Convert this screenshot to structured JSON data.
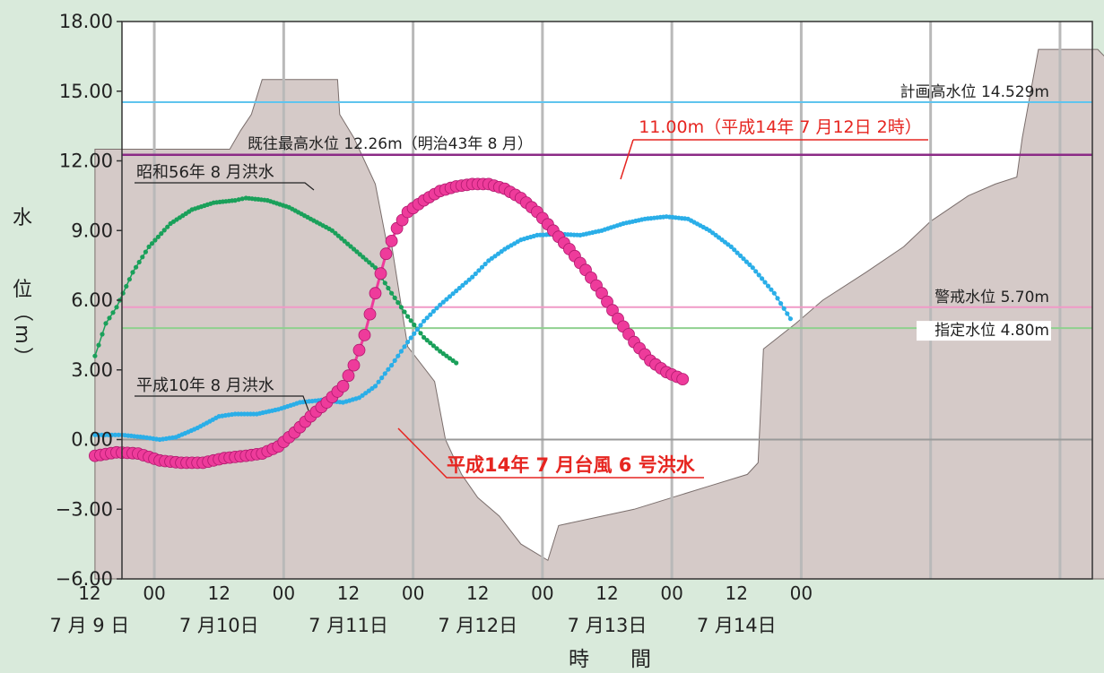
{
  "chart_data": {
    "type": "line",
    "xlabel": "時　　間",
    "ylabel": [
      "水",
      "位",
      "（",
      "m",
      "）"
    ],
    "ylim": [
      -6,
      18
    ],
    "xlim_hours": [
      0,
      144
    ],
    "yticks": [
      "18.00",
      "15.00",
      "12.00",
      "9.00",
      "6.00",
      "3.00",
      "0.00",
      "−3.00",
      "−6.00"
    ],
    "hour_ticks": [
      "12",
      "00",
      "12",
      "00",
      "12",
      "00",
      "12",
      "00",
      "12",
      "00",
      "12",
      "00"
    ],
    "date_ticks": [
      "7 月 9 日",
      "7 月10日",
      "7 月11日",
      "7 月12日",
      "7 月13日",
      "7 月14日"
    ],
    "reference_lines": [
      {
        "name": "計画高水位 14.529m",
        "value": 14.529,
        "color": "#5fc4ee"
      },
      {
        "name": "既往最高水位 12.26m（明治43年 8 月）",
        "value": 12.26,
        "color": "#8b2a86"
      },
      {
        "name": "警戒水位 5.70m",
        "value": 5.7,
        "color": "#f09ac7"
      },
      {
        "name": "指定水位 4.80m",
        "value": 4.8,
        "color": "#8fd08f"
      },
      {
        "name": "",
        "value": 0.0,
        "color": "#999999"
      }
    ],
    "series": [
      {
        "name": "昭和56年 8 月洪水",
        "color": "#1aa05a",
        "points": [
          [
            -5,
            3.6
          ],
          [
            -3,
            5.0
          ],
          [
            -1,
            5.7
          ],
          [
            2,
            7.2
          ],
          [
            5,
            8.3
          ],
          [
            9,
            9.3
          ],
          [
            13,
            9.9
          ],
          [
            17,
            10.2
          ],
          [
            21,
            10.3
          ],
          [
            23,
            10.4
          ],
          [
            27,
            10.3
          ],
          [
            31,
            10.0
          ],
          [
            35,
            9.5
          ],
          [
            39,
            9.0
          ],
          [
            43,
            8.2
          ],
          [
            47,
            7.4
          ],
          [
            50,
            6.3
          ],
          [
            53,
            5.3
          ],
          [
            56,
            4.4
          ],
          [
            59,
            3.8
          ],
          [
            62,
            3.3
          ]
        ]
      },
      {
        "name": "平成10年 8 月洪水",
        "color": "#2aaee8",
        "points": [
          [
            -5,
            0.2
          ],
          [
            0,
            0.2
          ],
          [
            4,
            0.1
          ],
          [
            7,
            0.0
          ],
          [
            10,
            0.1
          ],
          [
            14,
            0.5
          ],
          [
            18,
            1.0
          ],
          [
            21,
            1.1
          ],
          [
            25,
            1.1
          ],
          [
            29,
            1.3
          ],
          [
            33,
            1.6
          ],
          [
            37,
            1.7
          ],
          [
            41,
            1.6
          ],
          [
            44,
            1.8
          ],
          [
            47,
            2.3
          ],
          [
            50,
            3.2
          ],
          [
            53,
            4.2
          ],
          [
            56,
            5.1
          ],
          [
            59,
            5.8
          ],
          [
            62,
            6.4
          ],
          [
            65,
            7.0
          ],
          [
            68,
            7.7
          ],
          [
            71,
            8.2
          ],
          [
            74,
            8.6
          ],
          [
            77,
            8.8
          ],
          [
            81,
            8.85
          ],
          [
            85,
            8.8
          ],
          [
            89,
            9.0
          ],
          [
            93,
            9.3
          ],
          [
            97,
            9.5
          ],
          [
            101,
            9.6
          ],
          [
            105,
            9.5
          ],
          [
            109,
            9.0
          ],
          [
            113,
            8.3
          ],
          [
            117,
            7.4
          ],
          [
            121,
            6.3
          ],
          [
            124,
            5.2
          ]
        ]
      },
      {
        "name": "平成14年 7 月台風 6 号洪水",
        "color": "#ee3b9b",
        "points": [
          [
            -5,
            -0.7
          ],
          [
            -1,
            -0.55
          ],
          [
            3,
            -0.6
          ],
          [
            7,
            -0.9
          ],
          [
            11,
            -1.0
          ],
          [
            15,
            -1.0
          ],
          [
            19,
            -0.8
          ],
          [
            23,
            -0.7
          ],
          [
            26,
            -0.6
          ],
          [
            29,
            -0.3
          ],
          [
            32,
            0.3
          ],
          [
            35,
            1.0
          ],
          [
            38,
            1.6
          ],
          [
            41,
            2.3
          ],
          [
            43,
            3.2
          ],
          [
            45,
            4.5
          ],
          [
            47,
            6.3
          ],
          [
            49,
            8.0
          ],
          [
            51,
            9.1
          ],
          [
            53,
            9.8
          ],
          [
            56,
            10.3
          ],
          [
            59,
            10.7
          ],
          [
            62,
            10.9
          ],
          [
            65,
            11.0
          ],
          [
            68,
            11.0
          ],
          [
            71,
            10.8
          ],
          [
            74,
            10.4
          ],
          [
            77,
            9.8
          ],
          [
            80,
            9.0
          ],
          [
            83,
            8.2
          ],
          [
            86,
            7.3
          ],
          [
            89,
            6.3
          ],
          [
            92,
            5.2
          ],
          [
            95,
            4.2
          ],
          [
            98,
            3.4
          ],
          [
            101,
            2.9
          ],
          [
            104,
            2.6
          ]
        ]
      }
    ],
    "terrain_points": [
      [
        -5,
        12.5
      ],
      [
        20,
        12.5
      ],
      [
        22,
        13.3
      ],
      [
        24,
        14.0
      ],
      [
        26,
        15.5
      ],
      [
        40,
        15.5
      ],
      [
        40.4,
        14.0
      ],
      [
        43,
        13.0
      ],
      [
        45,
        12.0
      ],
      [
        47,
        11.0
      ],
      [
        49,
        8.6
      ],
      [
        50,
        8.4
      ],
      [
        53,
        4.0
      ],
      [
        58,
        2.5
      ],
      [
        60,
        0.0
      ],
      [
        63,
        -1.5
      ],
      [
        66,
        -2.5
      ],
      [
        70,
        -3.3
      ],
      [
        74,
        -4.5
      ],
      [
        79,
        -5.2
      ],
      [
        81,
        -3.7
      ],
      [
        87,
        -3.4
      ],
      [
        95,
        -3.0
      ],
      [
        102,
        -2.5
      ],
      [
        109,
        -2.0
      ],
      [
        116,
        -1.5
      ],
      [
        118,
        -1.0
      ],
      [
        119,
        3.9
      ],
      [
        125,
        5.0
      ],
      [
        130,
        6.0
      ],
      [
        138,
        7.2
      ],
      [
        145,
        8.3
      ],
      [
        150,
        9.4
      ],
      [
        157,
        10.5
      ],
      [
        162,
        11.0
      ],
      [
        166,
        11.3
      ],
      [
        167,
        13.0
      ],
      [
        170,
        16.8
      ],
      [
        181,
        16.8
      ],
      [
        186,
        15.6
      ],
      [
        210,
        15.6
      ],
      [
        210,
        -6
      ],
      [
        -5,
        -6
      ]
    ],
    "annotations": [
      {
        "id": "peak",
        "text": "11.00m（平成14年 7 月12日 2時）",
        "color": "#e62520"
      },
      {
        "id": "s14",
        "text": "平成14年 7 月台風 6 号洪水",
        "color": "#e62520"
      },
      {
        "id": "s56",
        "text": "昭和56年 8 月洪水",
        "color": "#222222"
      },
      {
        "id": "h10",
        "text": "平成10年 8 月洪水",
        "color": "#222222"
      }
    ]
  }
}
